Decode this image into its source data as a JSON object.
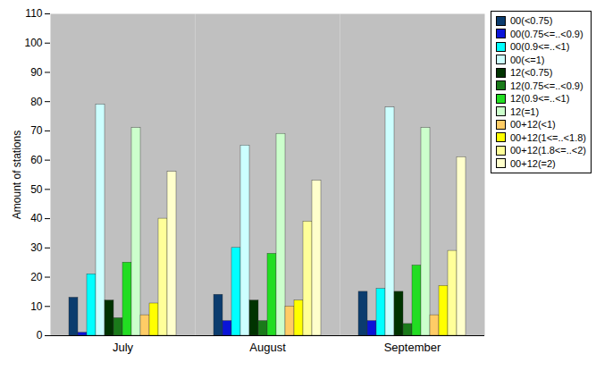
{
  "chart_data": {
    "type": "bar",
    "y_label": "Amount of stations",
    "categories": [
      "July",
      "August",
      "September"
    ],
    "ylim": [
      0,
      110
    ],
    "yticks": [
      0,
      10,
      20,
      30,
      40,
      50,
      60,
      70,
      80,
      90,
      100,
      110
    ],
    "grid": false,
    "legend": "top-right",
    "series": [
      {
        "name": "00(<0.75)",
        "color": "#0b3c6e",
        "values": [
          13,
          14,
          15
        ]
      },
      {
        "name": "00(0.75<=..<0.9)",
        "color": "#0a14d8",
        "values": [
          1,
          5,
          5
        ]
      },
      {
        "name": "00(0.9<=..<1)",
        "color": "#00ffff",
        "values": [
          21,
          30,
          16
        ]
      },
      {
        "name": "00(<=1)",
        "color": "#ccffff",
        "values": [
          79,
          65,
          78
        ]
      },
      {
        "name": "12(<0.75)",
        "color": "#003300",
        "values": [
          12,
          12,
          15
        ]
      },
      {
        "name": "12(0.75<=..<0.9)",
        "color": "#1a7a1a",
        "values": [
          6,
          5,
          4
        ]
      },
      {
        "name": "12(0.9<=..<1)",
        "color": "#22dd22",
        "values": [
          25,
          28,
          24
        ]
      },
      {
        "name": "12(=1)",
        "color": "#ccffcc",
        "values": [
          71,
          69,
          71
        ]
      },
      {
        "name": "00+12(<1)",
        "color": "#ffcc66",
        "values": [
          7,
          10,
          7
        ]
      },
      {
        "name": "00+12(1<=..<1.8)",
        "color": "#ffff00",
        "values": [
          11,
          12,
          17
        ]
      },
      {
        "name": "00+12(1.8<=..<2)",
        "color": "#ffff99",
        "values": [
          40,
          39,
          29
        ]
      },
      {
        "name": "00+12(=2)",
        "color": "#ffffcc",
        "values": [
          56,
          53,
          61
        ]
      }
    ]
  }
}
